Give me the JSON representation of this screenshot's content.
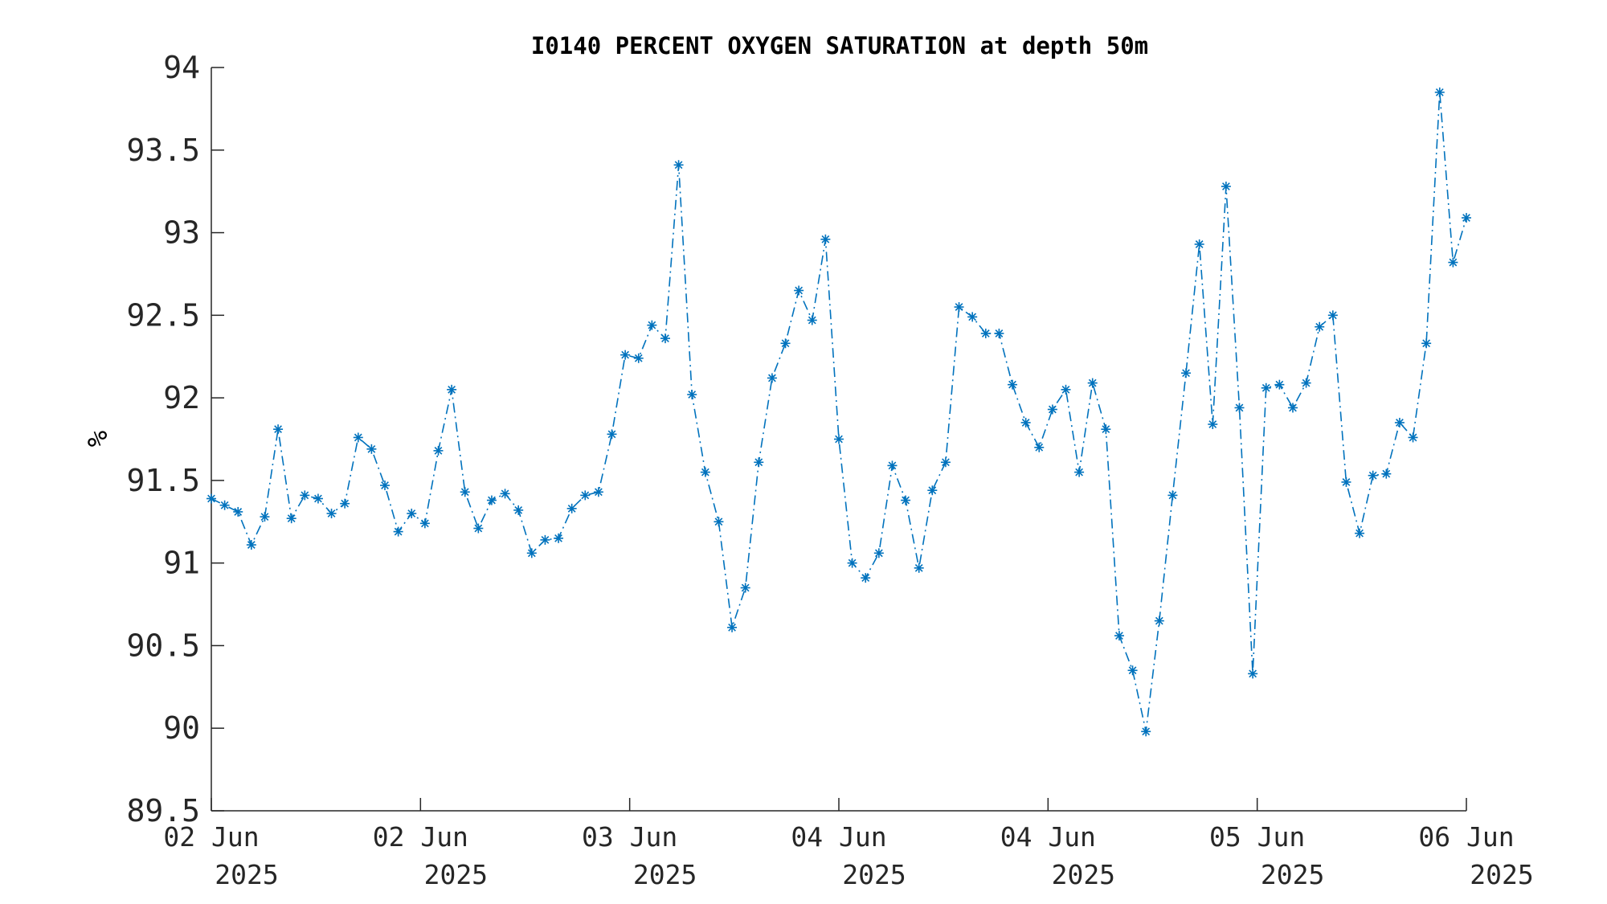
{
  "colors": {
    "series": "#0072BD",
    "axis": "#262626"
  },
  "chart_data": {
    "type": "line",
    "title": "I0140 PERCENT OXYGEN SATURATION at depth 50m",
    "xlabel": "",
    "ylabel": "%",
    "ylim": [
      89.5,
      94
    ],
    "yticks": [
      89.5,
      90,
      90.5,
      91,
      91.5,
      92,
      92.5,
      93,
      93.5,
      94
    ],
    "ytick_labels": [
      "89.5",
      "90",
      "90.5",
      "91",
      "91.5",
      "92",
      "92.5",
      "93",
      "93.5",
      "94"
    ],
    "xticks": [
      {
        "line1": "02 Jun",
        "line2": "2025"
      },
      {
        "line1": "02 Jun",
        "line2": "2025"
      },
      {
        "line1": "03 Jun",
        "line2": "2025"
      },
      {
        "line1": "04 Jun",
        "line2": "2025"
      },
      {
        "line1": "04 Jun",
        "line2": "2025"
      },
      {
        "line1": "05 Jun",
        "line2": "2025"
      },
      {
        "line1": "06 Jun",
        "line2": "2025"
      }
    ],
    "grid": false,
    "line_style": "dash-dot",
    "marker": "asterisk",
    "series": [
      {
        "values": [
          91.39,
          91.35,
          91.31,
          91.11,
          91.28,
          91.81,
          91.27,
          91.41,
          91.39,
          91.3,
          91.36,
          91.76,
          91.69,
          91.47,
          91.19,
          91.3,
          91.24,
          91.68,
          92.05,
          91.43,
          91.21,
          91.38,
          91.42,
          91.32,
          91.06,
          91.14,
          91.15,
          91.33,
          91.41,
          91.43,
          91.78,
          92.26,
          92.24,
          92.44,
          92.36,
          93.41,
          92.02,
          91.55,
          91.25,
          90.61,
          90.85,
          91.61,
          92.12,
          92.33,
          92.65,
          92.47,
          92.96,
          91.75,
          91.0,
          90.91,
          91.06,
          91.59,
          91.38,
          90.97,
          91.44,
          91.61,
          92.55,
          92.49,
          92.39,
          92.39,
          92.08,
          91.85,
          91.7,
          91.93,
          92.05,
          91.55,
          92.09,
          91.81,
          90.56,
          90.35,
          89.98,
          90.65,
          91.41,
          92.15,
          92.93,
          91.84,
          93.28,
          91.94,
          90.33,
          92.06,
          92.08,
          91.94,
          92.09,
          92.43,
          92.5,
          91.49,
          91.18,
          91.53,
          91.54,
          91.85,
          91.76,
          92.33,
          93.85,
          92.82,
          93.09
        ]
      }
    ]
  }
}
